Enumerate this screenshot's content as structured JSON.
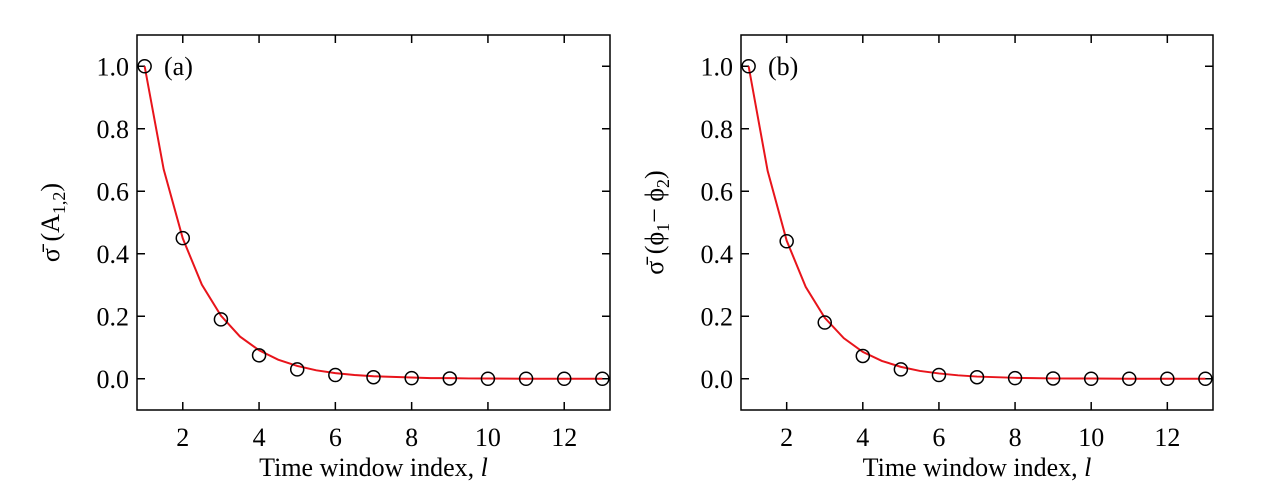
{
  "chart_data": [
    {
      "type": "scatter",
      "annotation": "(a)",
      "xlabel": [
        {
          "text": "Time window index, "
        },
        {
          "text": "l",
          "italic": true
        }
      ],
      "ylabel": [
        {
          "text": "σ̄ (A"
        },
        {
          "text": "1,2",
          "sub": true
        },
        {
          "text": ")"
        }
      ],
      "xlim": [
        0.8,
        13.2
      ],
      "ylim": [
        -0.1,
        1.1
      ],
      "xticks": [
        2,
        4,
        6,
        8,
        10,
        12
      ],
      "yticks": [
        {
          "value": 0,
          "label": "0.0"
        },
        {
          "value": 0.2,
          "label": "0.2"
        },
        {
          "value": 0.4,
          "label": "0.4"
        },
        {
          "value": 0.6,
          "label": "0.6"
        },
        {
          "value": 0.8,
          "label": "0.8"
        },
        {
          "value": 1,
          "label": "1.0"
        }
      ],
      "series": [
        {
          "style": "markers",
          "color": "#000000",
          "x": [
            1,
            2,
            3,
            4,
            5,
            6,
            7,
            8,
            9,
            10,
            11,
            12,
            13
          ],
          "values": [
            1.0,
            0.45,
            0.19,
            0.075,
            0.03,
            0.012,
            0.005,
            0.002,
            0.001,
            0,
            0,
            0,
            0
          ]
        },
        {
          "style": "line",
          "color": "#e8141b",
          "x": [
            1,
            1.5,
            2,
            2.5,
            3,
            3.5,
            4,
            4.5,
            5,
            5.5,
            6,
            6.5,
            7,
            7.5,
            8,
            8.5,
            9,
            9.5,
            10,
            11,
            12,
            13
          ],
          "values": [
            1.0,
            0.67,
            0.449,
            0.301,
            0.202,
            0.135,
            0.091,
            0.061,
            0.041,
            0.027,
            0.018,
            0.012,
            0.008,
            0.006,
            0.004,
            0.002,
            0.002,
            0.001,
            0.001,
            0,
            0,
            0
          ]
        }
      ]
    },
    {
      "type": "scatter",
      "annotation": "(b)",
      "xlabel": [
        {
          "text": "Time window index, "
        },
        {
          "text": "l",
          "italic": true
        }
      ],
      "ylabel": [
        {
          "text": "σ̄ (ϕ"
        },
        {
          "text": "1",
          "sub": true
        },
        {
          "text": "− ϕ"
        },
        {
          "text": "2",
          "sub": true
        },
        {
          "text": ")"
        }
      ],
      "xlim": [
        0.8,
        13.2
      ],
      "ylim": [
        -0.1,
        1.1
      ],
      "xticks": [
        2,
        4,
        6,
        8,
        10,
        12
      ],
      "yticks": [
        {
          "value": 0,
          "label": "0.0"
        },
        {
          "value": 0.2,
          "label": "0.2"
        },
        {
          "value": 0.4,
          "label": "0.4"
        },
        {
          "value": 0.6,
          "label": "0.6"
        },
        {
          "value": 0.8,
          "label": "0.8"
        },
        {
          "value": 1,
          "label": "1.0"
        }
      ],
      "series": [
        {
          "style": "markers",
          "color": "#000000",
          "x": [
            1,
            2,
            3,
            4,
            5,
            6,
            7,
            8,
            9,
            10,
            11,
            12,
            13
          ],
          "values": [
            1.0,
            0.44,
            0.18,
            0.073,
            0.03,
            0.012,
            0.005,
            0.002,
            0.001,
            0,
            0,
            0,
            0
          ]
        },
        {
          "style": "line",
          "color": "#e8141b",
          "x": [
            1,
            1.5,
            2,
            2.5,
            3,
            3.5,
            4,
            4.5,
            5,
            5.5,
            6,
            6.5,
            7,
            7.5,
            8,
            8.5,
            9,
            9.5,
            10,
            11,
            12,
            13
          ],
          "values": [
            1.0,
            0.665,
            0.442,
            0.294,
            0.195,
            0.13,
            0.086,
            0.057,
            0.038,
            0.025,
            0.017,
            0.011,
            0.007,
            0.005,
            0.003,
            0.002,
            0.001,
            0.001,
            0.001,
            0,
            0,
            0
          ]
        }
      ]
    }
  ]
}
